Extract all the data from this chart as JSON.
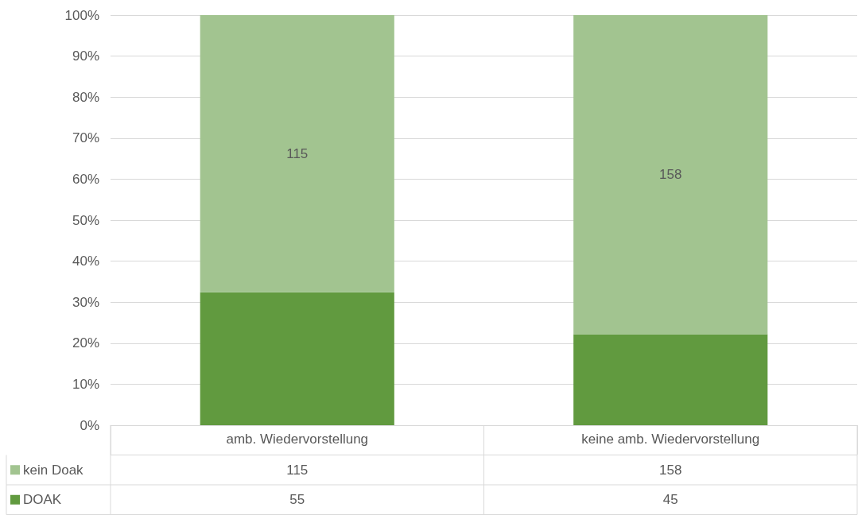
{
  "chart_data": {
    "type": "bar",
    "stacked": true,
    "categories": [
      "amb. Wiedervorstellung",
      "keine amb. Wiedervorstellung"
    ],
    "series": [
      {
        "name": "DOAK",
        "color": "#619a3f",
        "values": [
          32.4,
          22.2
        ]
      },
      {
        "name": "kein Doak",
        "color": "#a2c490",
        "values": [
          67.6,
          77.8
        ]
      }
    ],
    "ylim": [
      0,
      100
    ],
    "yticks": [
      {
        "value": 0,
        "label": "0%"
      },
      {
        "value": 10,
        "label": "10%"
      },
      {
        "value": 20,
        "label": "20%"
      },
      {
        "value": 30,
        "label": "30%"
      },
      {
        "value": 40,
        "label": "40%"
      },
      {
        "value": 50,
        "label": "50%"
      },
      {
        "value": 60,
        "label": "60%"
      },
      {
        "value": 70,
        "label": "70%"
      },
      {
        "value": 80,
        "label": "80%"
      },
      {
        "value": 90,
        "label": "90%"
      },
      {
        "value": 100,
        "label": "100%"
      }
    ],
    "grid": "y",
    "legend": "bottom",
    "annotations": [
      "115",
      "158",
      "115",
      "158",
      "55",
      "45"
    ]
  }
}
